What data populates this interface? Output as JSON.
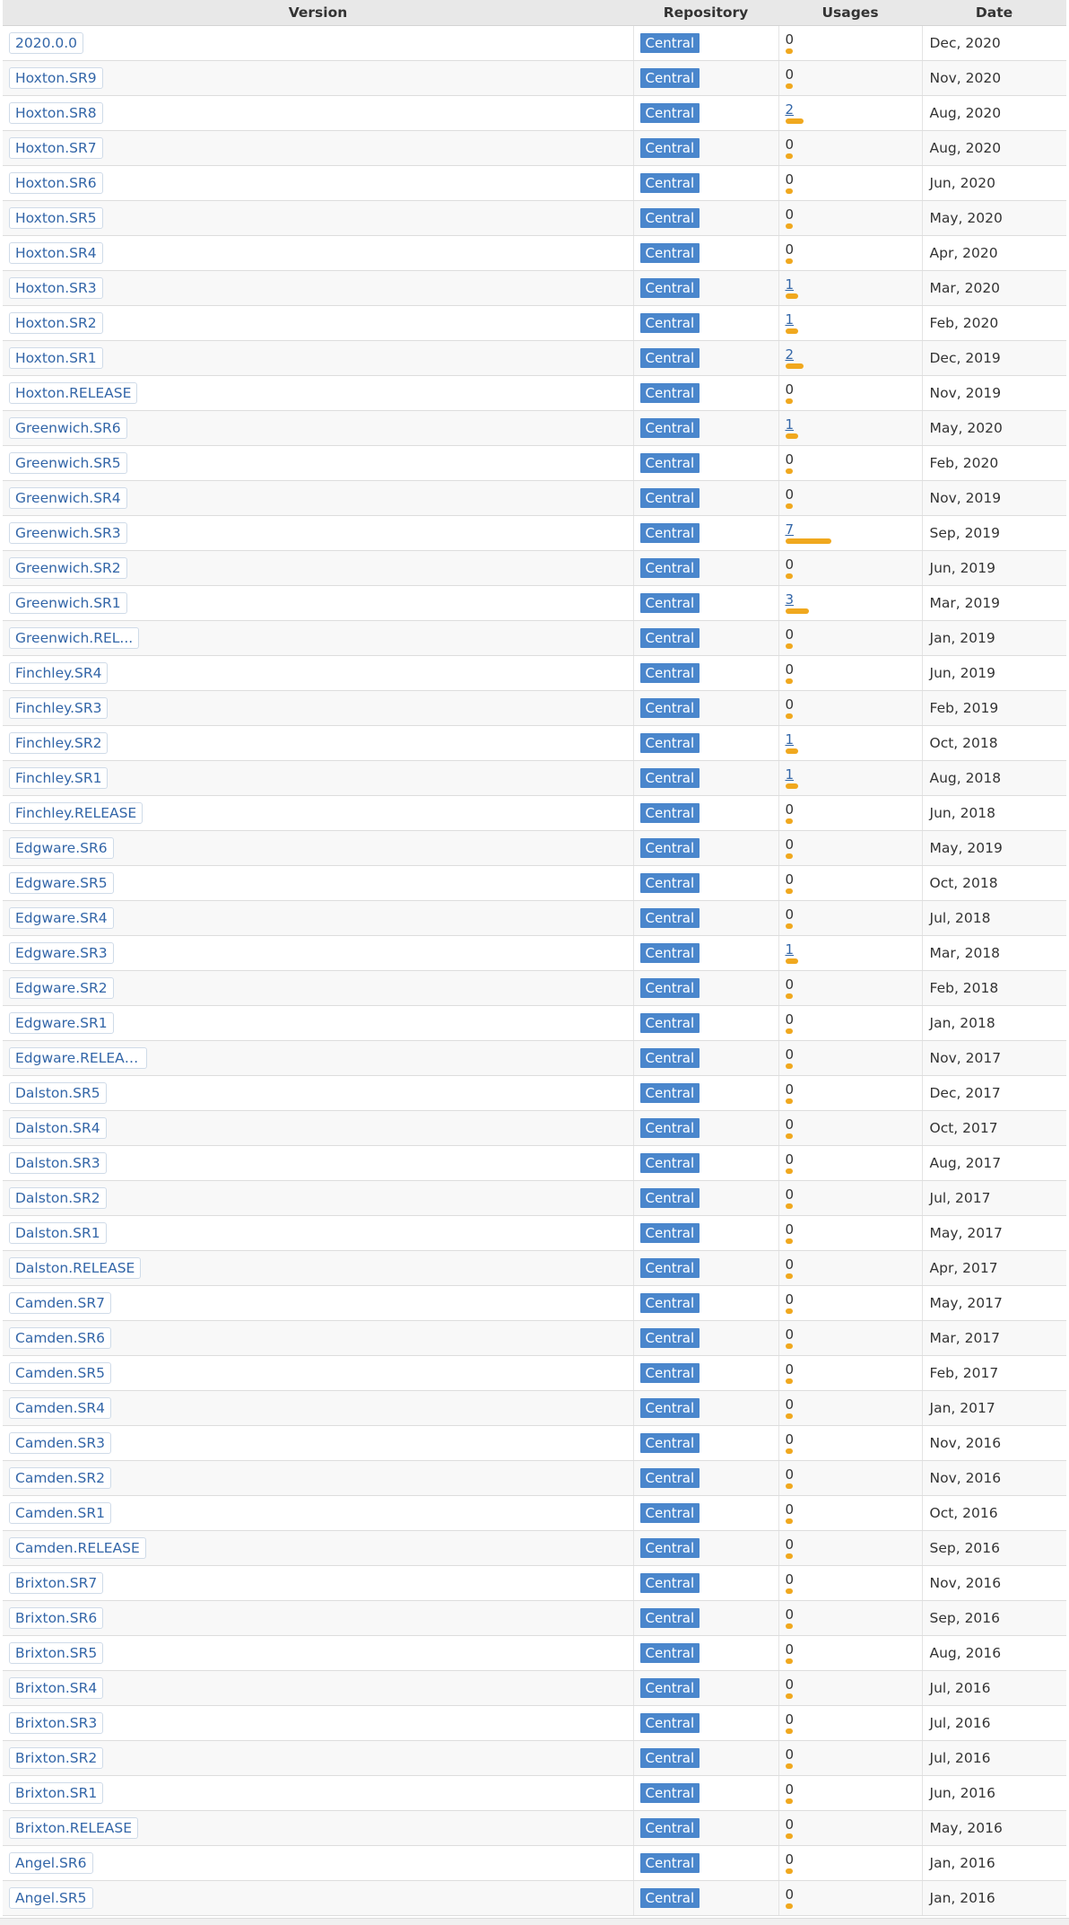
{
  "headers": {
    "version": "Version",
    "repository": "Repository",
    "usages": "Usages",
    "date": "Date"
  },
  "colors": {
    "link": "#3366a8",
    "repo_badge": "#4a86cc",
    "usage_bar": "#f0a81e"
  },
  "rows": [
    {
      "version": "2020.0.0",
      "repo": "Central",
      "usages": 0,
      "date": "Dec, 2020"
    },
    {
      "version": "Hoxton.SR9",
      "repo": "Central",
      "usages": 0,
      "date": "Nov, 2020"
    },
    {
      "version": "Hoxton.SR8",
      "repo": "Central",
      "usages": 2,
      "date": "Aug, 2020"
    },
    {
      "version": "Hoxton.SR7",
      "repo": "Central",
      "usages": 0,
      "date": "Aug, 2020"
    },
    {
      "version": "Hoxton.SR6",
      "repo": "Central",
      "usages": 0,
      "date": "Jun, 2020"
    },
    {
      "version": "Hoxton.SR5",
      "repo": "Central",
      "usages": 0,
      "date": "May, 2020"
    },
    {
      "version": "Hoxton.SR4",
      "repo": "Central",
      "usages": 0,
      "date": "Apr, 2020"
    },
    {
      "version": "Hoxton.SR3",
      "repo": "Central",
      "usages": 1,
      "date": "Mar, 2020"
    },
    {
      "version": "Hoxton.SR2",
      "repo": "Central",
      "usages": 1,
      "date": "Feb, 2020"
    },
    {
      "version": "Hoxton.SR1",
      "repo": "Central",
      "usages": 2,
      "date": "Dec, 2019"
    },
    {
      "version": "Hoxton.RELEASE",
      "repo": "Central",
      "usages": 0,
      "date": "Nov, 2019"
    },
    {
      "version": "Greenwich.SR6",
      "repo": "Central",
      "usages": 1,
      "date": "May, 2020"
    },
    {
      "version": "Greenwich.SR5",
      "repo": "Central",
      "usages": 0,
      "date": "Feb, 2020"
    },
    {
      "version": "Greenwich.SR4",
      "repo": "Central",
      "usages": 0,
      "date": "Nov, 2019"
    },
    {
      "version": "Greenwich.SR3",
      "repo": "Central",
      "usages": 7,
      "date": "Sep, 2019"
    },
    {
      "version": "Greenwich.SR2",
      "repo": "Central",
      "usages": 0,
      "date": "Jun, 2019"
    },
    {
      "version": "Greenwich.SR1",
      "repo": "Central",
      "usages": 3,
      "date": "Mar, 2019"
    },
    {
      "version": "Greenwich.REL...",
      "repo": "Central",
      "usages": 0,
      "date": "Jan, 2019"
    },
    {
      "version": "Finchley.SR4",
      "repo": "Central",
      "usages": 0,
      "date": "Jun, 2019"
    },
    {
      "version": "Finchley.SR3",
      "repo": "Central",
      "usages": 0,
      "date": "Feb, 2019"
    },
    {
      "version": "Finchley.SR2",
      "repo": "Central",
      "usages": 1,
      "date": "Oct, 2018"
    },
    {
      "version": "Finchley.SR1",
      "repo": "Central",
      "usages": 1,
      "date": "Aug, 2018"
    },
    {
      "version": "Finchley.RELEASE",
      "repo": "Central",
      "usages": 0,
      "date": "Jun, 2018"
    },
    {
      "version": "Edgware.SR6",
      "repo": "Central",
      "usages": 0,
      "date": "May, 2019"
    },
    {
      "version": "Edgware.SR5",
      "repo": "Central",
      "usages": 0,
      "date": "Oct, 2018"
    },
    {
      "version": "Edgware.SR4",
      "repo": "Central",
      "usages": 0,
      "date": "Jul, 2018"
    },
    {
      "version": "Edgware.SR3",
      "repo": "Central",
      "usages": 1,
      "date": "Mar, 2018"
    },
    {
      "version": "Edgware.SR2",
      "repo": "Central",
      "usages": 0,
      "date": "Feb, 2018"
    },
    {
      "version": "Edgware.SR1",
      "repo": "Central",
      "usages": 0,
      "date": "Jan, 2018"
    },
    {
      "version": "Edgware.RELEASE",
      "repo": "Central",
      "usages": 0,
      "date": "Nov, 2017"
    },
    {
      "version": "Dalston.SR5",
      "repo": "Central",
      "usages": 0,
      "date": "Dec, 2017"
    },
    {
      "version": "Dalston.SR4",
      "repo": "Central",
      "usages": 0,
      "date": "Oct, 2017"
    },
    {
      "version": "Dalston.SR3",
      "repo": "Central",
      "usages": 0,
      "date": "Aug, 2017"
    },
    {
      "version": "Dalston.SR2",
      "repo": "Central",
      "usages": 0,
      "date": "Jul, 2017"
    },
    {
      "version": "Dalston.SR1",
      "repo": "Central",
      "usages": 0,
      "date": "May, 2017"
    },
    {
      "version": "Dalston.RELEASE",
      "repo": "Central",
      "usages": 0,
      "date": "Apr, 2017"
    },
    {
      "version": "Camden.SR7",
      "repo": "Central",
      "usages": 0,
      "date": "May, 2017"
    },
    {
      "version": "Camden.SR6",
      "repo": "Central",
      "usages": 0,
      "date": "Mar, 2017"
    },
    {
      "version": "Camden.SR5",
      "repo": "Central",
      "usages": 0,
      "date": "Feb, 2017"
    },
    {
      "version": "Camden.SR4",
      "repo": "Central",
      "usages": 0,
      "date": "Jan, 2017"
    },
    {
      "version": "Camden.SR3",
      "repo": "Central",
      "usages": 0,
      "date": "Nov, 2016"
    },
    {
      "version": "Camden.SR2",
      "repo": "Central",
      "usages": 0,
      "date": "Nov, 2016"
    },
    {
      "version": "Camden.SR1",
      "repo": "Central",
      "usages": 0,
      "date": "Oct, 2016"
    },
    {
      "version": "Camden.RELEASE",
      "repo": "Central",
      "usages": 0,
      "date": "Sep, 2016"
    },
    {
      "version": "Brixton.SR7",
      "repo": "Central",
      "usages": 0,
      "date": "Nov, 2016"
    },
    {
      "version": "Brixton.SR6",
      "repo": "Central",
      "usages": 0,
      "date": "Sep, 2016"
    },
    {
      "version": "Brixton.SR5",
      "repo": "Central",
      "usages": 0,
      "date": "Aug, 2016"
    },
    {
      "version": "Brixton.SR4",
      "repo": "Central",
      "usages": 0,
      "date": "Jul, 2016"
    },
    {
      "version": "Brixton.SR3",
      "repo": "Central",
      "usages": 0,
      "date": "Jul, 2016"
    },
    {
      "version": "Brixton.SR2",
      "repo": "Central",
      "usages": 0,
      "date": "Jul, 2016"
    },
    {
      "version": "Brixton.SR1",
      "repo": "Central",
      "usages": 0,
      "date": "Jun, 2016"
    },
    {
      "version": "Brixton.RELEASE",
      "repo": "Central",
      "usages": 0,
      "date": "May, 2016"
    },
    {
      "version": "Angel.SR6",
      "repo": "Central",
      "usages": 0,
      "date": "Jan, 2016"
    },
    {
      "version": "Angel.SR5",
      "repo": "Central",
      "usages": 0,
      "date": "Jan, 2016"
    }
  ]
}
